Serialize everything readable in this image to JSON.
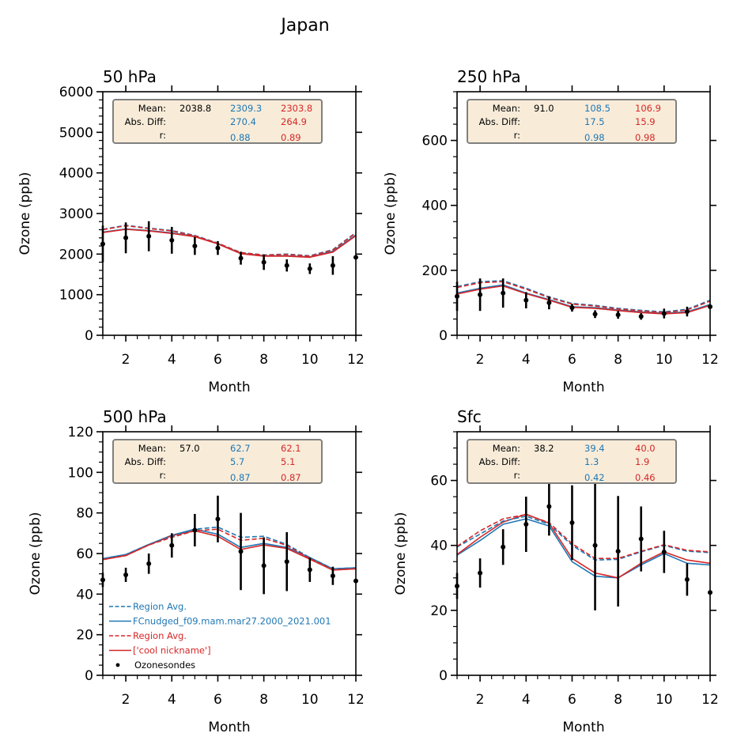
{
  "figure": {
    "suptitle": "Japan"
  },
  "colors": {
    "model1": "#1f77b4",
    "model2": "#d62728",
    "obs": "#000000",
    "stats_box_bg": "#f8ecd9",
    "stats_box_border": "#808080"
  },
  "legend": {
    "panel": 2,
    "entries": [
      {
        "label": "Region Avg.",
        "color": "#1f77b4",
        "style": "dashed"
      },
      {
        "label": "FCnudged_f09.mam.mar27.2000_2021.001",
        "color": "#1f77b4",
        "style": "solid"
      },
      {
        "label": "Region Avg.",
        "color": "#d62728",
        "style": "dashed"
      },
      {
        "label": "['cool nickname']",
        "color": "#d62728",
        "style": "solid"
      },
      {
        "label": "Ozonesondes",
        "color": "#000000",
        "style": "marker"
      }
    ]
  },
  "chart_data": [
    {
      "type": "line",
      "title": "50 hPa",
      "xlabel": "Month",
      "ylabel": "Ozone (ppb)",
      "xlim": [
        1,
        12
      ],
      "ylim": [
        0,
        6000
      ],
      "xticks": [
        2,
        4,
        6,
        8,
        10,
        12
      ],
      "yticks": [
        0,
        1000,
        2000,
        3000,
        4000,
        5000,
        6000
      ],
      "yminor": 200,
      "x": [
        1,
        2,
        3,
        4,
        5,
        6,
        7,
        8,
        9,
        10,
        11,
        12
      ],
      "stats": {
        "labels": [
          "Mean:",
          "Abs. Diff:",
          "r:"
        ],
        "obs_mean": "2038.8",
        "model1": [
          "2309.3",
          "270.4",
          "0.88"
        ],
        "model2": [
          "2303.8",
          "264.9",
          "0.89"
        ]
      },
      "series": [
        {
          "name": "Region Avg.",
          "color": "#1f77b4",
          "style": "dashed",
          "values": [
            2610,
            2710,
            2640,
            2580,
            2460,
            2270,
            2040,
            1980,
            2000,
            1960,
            2110,
            2530
          ]
        },
        {
          "name": "FCnudged_f09.mam.mar27.2000_2021.001",
          "color": "#1f77b4",
          "style": "solid",
          "values": [
            2540,
            2620,
            2580,
            2520,
            2440,
            2260,
            2020,
            1960,
            1960,
            1930,
            2070,
            2470
          ]
        },
        {
          "name": "Region Avg.",
          "color": "#d62728",
          "style": "dashed",
          "values": [
            2600,
            2700,
            2630,
            2570,
            2450,
            2265,
            2035,
            1975,
            1990,
            1950,
            2100,
            2520
          ]
        },
        {
          "name": "['cool nickname']",
          "color": "#d62728",
          "style": "solid",
          "values": [
            2530,
            2610,
            2570,
            2510,
            2430,
            2250,
            2010,
            1950,
            1950,
            1920,
            2050,
            2450
          ]
        }
      ],
      "observations": {
        "name": "Ozonesondes",
        "values": [
          2250,
          2400,
          2440,
          2340,
          2200,
          2150,
          1900,
          1800,
          1720,
          1640,
          1720,
          1920
        ],
        "errors": [
          450,
          380,
          370,
          330,
          220,
          170,
          160,
          190,
          150,
          130,
          230,
          0
        ]
      }
    },
    {
      "type": "line",
      "title": "250 hPa",
      "xlabel": "Month",
      "ylabel": "Ozone (ppb)",
      "xlim": [
        1,
        12
      ],
      "ylim": [
        0,
        750
      ],
      "xticks": [
        2,
        4,
        6,
        8,
        10,
        12
      ],
      "yticks": [
        0,
        200,
        400,
        600
      ],
      "yminor": 50,
      "x": [
        1,
        2,
        3,
        4,
        5,
        6,
        7,
        8,
        9,
        10,
        11,
        12
      ],
      "stats": {
        "labels": [
          "Mean:",
          "Abs. Diff:",
          "r:"
        ],
        "obs_mean": "91.0",
        "model1": [
          "108.5",
          "17.5",
          "0.98"
        ],
        "model2": [
          "106.9",
          "15.9",
          "0.98"
        ]
      },
      "series": [
        {
          "name": "Region Avg.",
          "color": "#1f77b4",
          "style": "dashed",
          "values": [
            150,
            165,
            168,
            145,
            118,
            98,
            92,
            83,
            77,
            72,
            80,
            108
          ]
        },
        {
          "name": "FCnudged_f09.mam.mar27.2000_2021.001",
          "color": "#1f77b4",
          "style": "solid",
          "values": [
            130,
            145,
            155,
            130,
            110,
            88,
            85,
            78,
            72,
            68,
            72,
            95
          ]
        },
        {
          "name": "Region Avg.",
          "color": "#d62728",
          "style": "dashed",
          "values": [
            147,
            162,
            165,
            142,
            116,
            96,
            90,
            81,
            75,
            70,
            78,
            105
          ]
        },
        {
          "name": "['cool nickname']",
          "color": "#d62728",
          "style": "solid",
          "values": [
            127,
            142,
            152,
            128,
            108,
            86,
            83,
            76,
            70,
            66,
            70,
            92
          ]
        }
      ],
      "observations": {
        "name": "Ozonesondes",
        "values": [
          120,
          125,
          130,
          108,
          100,
          85,
          65,
          63,
          58,
          67,
          73,
          88
        ],
        "errors": [
          45,
          50,
          45,
          25,
          20,
          12,
          12,
          12,
          10,
          15,
          15,
          0
        ]
      }
    },
    {
      "type": "line",
      "title": "500 hPa",
      "xlabel": "Month",
      "ylabel": "Ozone (ppb)",
      "xlim": [
        1,
        12
      ],
      "ylim": [
        0,
        120
      ],
      "xticks": [
        2,
        4,
        6,
        8,
        10,
        12
      ],
      "yticks": [
        0,
        20,
        40,
        60,
        80,
        100,
        120
      ],
      "yminor": 5,
      "x": [
        1,
        2,
        3,
        4,
        5,
        6,
        7,
        8,
        9,
        10,
        11,
        12
      ],
      "stats": {
        "labels": [
          "Mean:",
          "Abs. Diff:",
          "r:"
        ],
        "obs_mean": "57.0",
        "model1": [
          "62.7",
          "5.7",
          "0.87"
        ],
        "model2": [
          "62.1",
          "5.1",
          "0.87"
        ]
      },
      "series": [
        {
          "name": "Region Avg.",
          "color": "#1f77b4",
          "style": "dashed",
          "values": [
            57.5,
            59.5,
            64.5,
            68.5,
            72,
            73,
            68,
            68.5,
            64.5,
            58,
            52.5,
            53
          ]
        },
        {
          "name": "FCnudged_f09.mam.mar27.2000_2021.001",
          "color": "#1f77b4",
          "style": "solid",
          "values": [
            57.5,
            59.5,
            64.5,
            69,
            72,
            69.5,
            63,
            65,
            63,
            58,
            52.5,
            53
          ]
        },
        {
          "name": "Region Avg.",
          "color": "#d62728",
          "style": "dashed",
          "values": [
            57,
            59,
            64.2,
            68,
            71.2,
            72,
            66.5,
            67.5,
            64,
            57.5,
            52,
            52.5
          ]
        },
        {
          "name": "['cool nickname']",
          "color": "#d62728",
          "style": "solid",
          "values": [
            57,
            59,
            64.2,
            68.8,
            71.2,
            68.5,
            62,
            64.2,
            62.5,
            57.2,
            51.8,
            52.5
          ]
        }
      ],
      "observations": {
        "name": "Ozonesondes",
        "values": [
          47,
          49.5,
          55,
          64,
          71.5,
          77,
          61,
          54,
          56,
          52,
          49,
          46.5
        ],
        "errors": [
          3.5,
          3.5,
          5,
          6,
          8,
          11.5,
          19,
          14,
          14.5,
          6,
          4.5,
          0
        ]
      }
    },
    {
      "type": "line",
      "title": "Sfc",
      "xlabel": "Month",
      "ylabel": "Ozone (ppb)",
      "xlim": [
        1,
        12
      ],
      "ylim": [
        0,
        75
      ],
      "xticks": [
        2,
        4,
        6,
        8,
        10,
        12
      ],
      "yticks": [
        0,
        20,
        40,
        60
      ],
      "yminor": 5,
      "x": [
        1,
        2,
        3,
        4,
        5,
        6,
        7,
        8,
        9,
        10,
        11,
        12
      ],
      "stats": {
        "labels": [
          "Mean:",
          "Abs. Diff:",
          "r:"
        ],
        "obs_mean": "38.2",
        "model1": [
          "39.4",
          "1.3",
          "0.42"
        ],
        "model2": [
          "40.0",
          "1.9",
          "0.46"
        ]
      },
      "series": [
        {
          "name": "Region Avg.",
          "color": "#1f77b4",
          "style": "dashed",
          "values": [
            39.5,
            43.5,
            47.5,
            49,
            46.5,
            40,
            35.5,
            35.7,
            38,
            40,
            38.2,
            37.8
          ]
        },
        {
          "name": "FCnudged_f09.mam.mar27.2000_2021.001",
          "color": "#1f77b4",
          "style": "solid",
          "values": [
            37,
            41.5,
            46.5,
            48.2,
            46,
            35,
            30.5,
            30,
            34,
            37.5,
            34.5,
            34
          ]
        },
        {
          "name": "Region Avg.",
          "color": "#d62728",
          "style": "dashed",
          "values": [
            39.7,
            44.5,
            48.2,
            49.5,
            47,
            40.5,
            36,
            36,
            38.2,
            40.2,
            38.5,
            38
          ]
        },
        {
          "name": "['cool nickname']",
          "color": "#d62728",
          "style": "solid",
          "values": [
            37.2,
            42.5,
            47.2,
            49.6,
            46.8,
            36,
            31.5,
            30,
            34.5,
            38,
            35.5,
            34.5
          ]
        }
      ],
      "observations": {
        "name": "Ozonesondes",
        "values": [
          27.5,
          31.5,
          39.5,
          46.5,
          52,
          47,
          40,
          38.2,
          42,
          38,
          29.5,
          25.5
        ],
        "errors": [
          4,
          4.5,
          5.5,
          8.5,
          9,
          11.5,
          20,
          17,
          10,
          6.5,
          5,
          0
        ]
      }
    }
  ]
}
